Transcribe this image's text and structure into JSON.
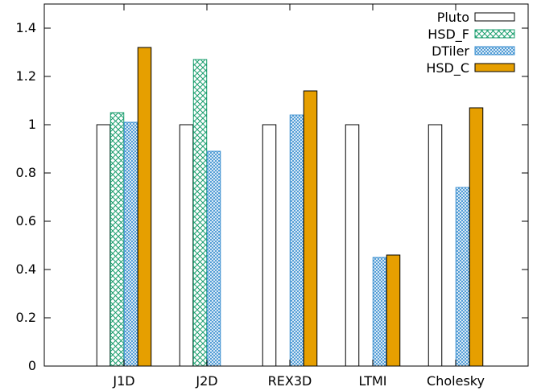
{
  "chart_data": {
    "type": "bar",
    "categories": [
      "J1D",
      "J2D",
      "REX3D",
      "LTMI",
      "Cholesky"
    ],
    "series": [
      {
        "name": "Pluto",
        "values": [
          1.0,
          1.0,
          1.0,
          1.0,
          1.0
        ],
        "fill": "#ffffff",
        "pattern": "none"
      },
      {
        "name": "HSD_F",
        "values": [
          1.05,
          1.27,
          0,
          0,
          0
        ],
        "fill": "#ffffff",
        "pattern": "crosshatch",
        "pattern_color": "#1a9e6e"
      },
      {
        "name": "DTiler",
        "values": [
          1.01,
          0.89,
          1.04,
          0.45,
          0.74
        ],
        "fill": "#ffffff",
        "pattern": "crosshatch-fine",
        "pattern_color": "#3a8fd0"
      },
      {
        "name": "HSD_C",
        "values": [
          1.32,
          0,
          1.14,
          0.46,
          1.07
        ],
        "fill": "#e69f00",
        "pattern": "solid"
      }
    ],
    "yticks": [
      "0",
      "0.2",
      "0.4",
      "0.6",
      "0.8",
      "1",
      "1.2",
      "1.4"
    ],
    "ylim": [
      0,
      1.5
    ],
    "title": "",
    "xlabel": "",
    "ylabel": "",
    "legend_position": "top-right",
    "grid": false
  }
}
